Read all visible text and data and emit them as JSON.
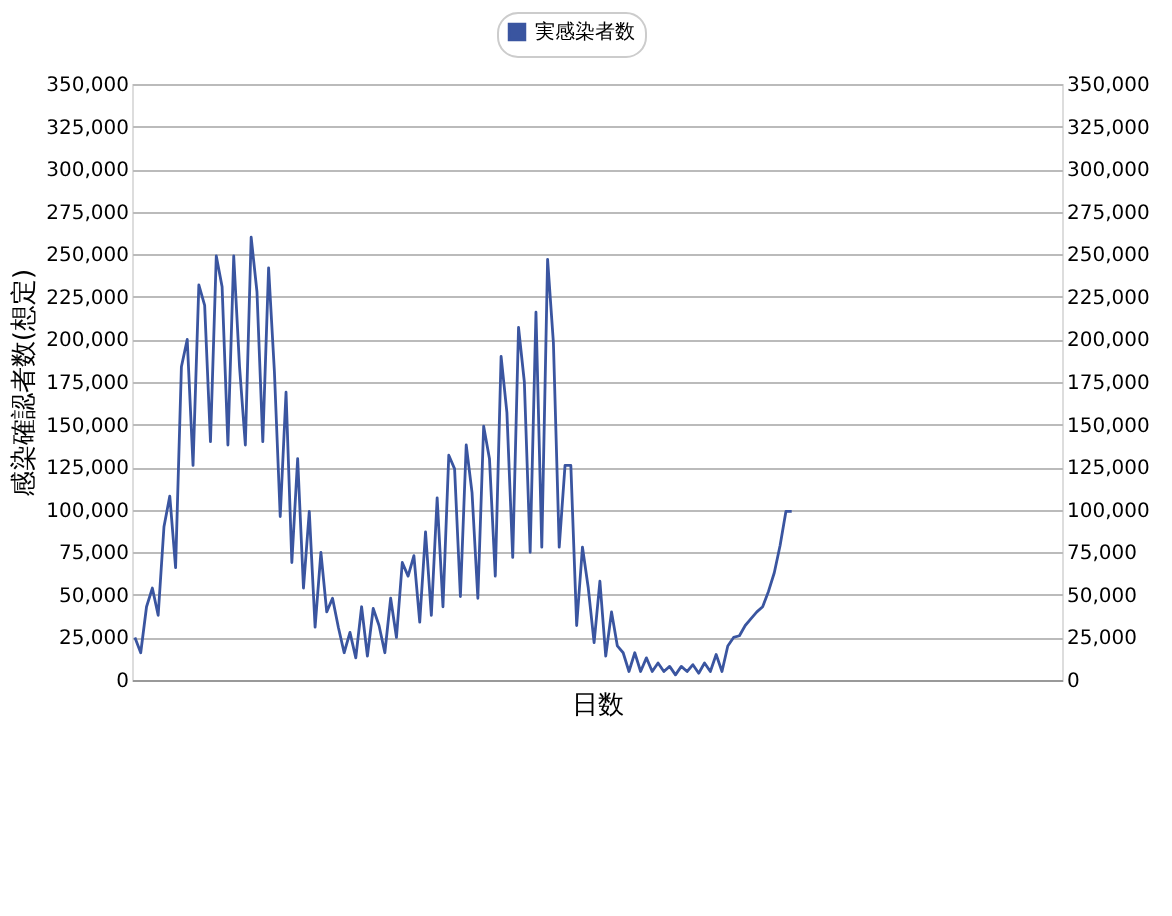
{
  "chart_data": {
    "type": "line",
    "xlabel": "日数",
    "ylabel": "感染確認者数(想定)",
    "categories": [
      null,
      null,
      null,
      null,
      null,
      null,
      null,
      null,
      null,
      null,
      null,
      null,
      null,
      null,
      null,
      null,
      null,
      null,
      null,
      null,
      null,
      null,
      null,
      null,
      null,
      null,
      null,
      null,
      null,
      null,
      null,
      null,
      null,
      null,
      null,
      null,
      null,
      null,
      null,
      null,
      null,
      null,
      null,
      null,
      null,
      null,
      null,
      null,
      null,
      null,
      null,
      null,
      null,
      null,
      null,
      null,
      null,
      null,
      null,
      null,
      null,
      null,
      null,
      null,
      null,
      null,
      null,
      null,
      null,
      null,
      null,
      null,
      null,
      null,
      null,
      null,
      null,
      null,
      null,
      null,
      null,
      null,
      null,
      null,
      null,
      null,
      null,
      null,
      null,
      null,
      null,
      null,
      null,
      null,
      null,
      null,
      null,
      null,
      null,
      null,
      null,
      null,
      null,
      null,
      null,
      null,
      null,
      null,
      null,
      null,
      null,
      null,
      null,
      null,
      null,
      null,
      null,
      null,
      null,
      null,
      null,
      null,
      null,
      null,
      null,
      null,
      null,
      null,
      null,
      null,
      null,
      null,
      null,
      null,
      null,
      null,
      null,
      null,
      null,
      null,
      null,
      null,
      null,
      null,
      null,
      null,
      null,
      null,
      null,
      null,
      null,
      null,
      null,
      null,
      null,
      null,
      null,
      null,
      null,
      null
    ],
    "series": [
      {
        "name": "実感染者数",
        "color": "#3a55a0",
        "values": [
          25000,
          16000,
          43000,
          54000,
          38000,
          90000,
          108000,
          66000,
          184000,
          200000,
          126000,
          232000,
          220000,
          140000,
          249000,
          231000,
          138000,
          249000,
          184000,
          138000,
          260000,
          228000,
          140000,
          242000,
          181000,
          96000,
          169000,
          69000,
          130000,
          54000,
          99000,
          31000,
          75000,
          40000,
          48000,
          31000,
          16000,
          28000,
          13000,
          43000,
          14000,
          42000,
          32000,
          16000,
          48000,
          25000,
          69000,
          61000,
          73000,
          34000,
          87000,
          38000,
          107000,
          43000,
          132000,
          124000,
          49000,
          138000,
          110000,
          48000,
          149000,
          130000,
          61000,
          190000,
          157000,
          72000,
          207000,
          175000,
          75000,
          216000,
          78000,
          247000,
          198000,
          78000,
          126000,
          126000,
          32000,
          78000,
          54000,
          22000,
          58000,
          14000,
          40000,
          20000,
          16000,
          5000,
          16000,
          5000,
          13000,
          5000,
          10000,
          5000,
          8000,
          3000,
          8000,
          5000,
          9000,
          4000,
          10000,
          5000,
          15000,
          5000,
          20000,
          25000,
          26000,
          32000,
          36000,
          40000,
          43000,
          52000,
          63000,
          79000,
          99000,
          99000,
          null,
          null,
          null,
          null,
          null,
          null,
          null,
          null,
          null,
          null,
          null,
          null,
          null,
          null,
          null,
          null,
          null,
          null,
          null,
          null,
          null,
          null,
          null,
          null,
          null,
          null,
          null,
          null,
          null,
          null,
          null,
          null,
          null,
          null,
          null,
          null,
          null,
          null,
          null,
          null,
          null,
          null,
          null,
          null,
          null,
          null
        ]
      }
    ],
    "ylim": [
      0,
      350000
    ],
    "yticks": [
      0,
      {
        "value": 25000,
        "label": "25,000"
      },
      {
        "value": 50000,
        "label": "50,000"
      },
      {
        "value": 75000,
        "label": "75,000"
      },
      {
        "value": 100000,
        "label": "100,000"
      },
      {
        "value": 125000,
        "label": "125,000"
      },
      {
        "value": 150000,
        "label": "150,000"
      },
      {
        "value": 175000,
        "label": "175,000"
      },
      {
        "value": 200000,
        "label": "200,000"
      },
      {
        "value": 225000,
        "label": "225,000"
      },
      {
        "value": 250000,
        "label": "250,000"
      },
      {
        "value": 275000,
        "label": "275,000"
      },
      {
        "value": 300000,
        "label": "300,000"
      },
      {
        "value": 325000,
        "label": "325,000"
      },
      {
        "value": 350000,
        "label": "350,000"
      }
    ],
    "y2lim": [
      0,
      350000
    ],
    "y2ticks": [
      0,
      {
        "value": 25000,
        "label": "25,000"
      },
      {
        "value": 50000,
        "label": "50,000"
      },
      {
        "value": 75000,
        "label": "75,000"
      },
      {
        "value": 100000,
        "label": "100,000"
      },
      {
        "value": 125000,
        "label": "125,000"
      },
      {
        "value": 150000,
        "label": "150,000"
      },
      {
        "value": 175000,
        "label": "175,000"
      },
      {
        "value": 200000,
        "label": "200,000"
      },
      {
        "value": 225000,
        "label": "225,000"
      },
      {
        "value": 250000,
        "label": "250,000"
      },
      {
        "value": 275000,
        "label": "275,000"
      },
      {
        "value": 300000,
        "label": "300,000"
      },
      {
        "value": 325000,
        "label": "325,000"
      },
      {
        "value": 350000,
        "label": "350,000"
      }
    ],
    "grid": "y",
    "legend": "top",
    "marker": "none",
    "line_style": "solid"
  }
}
